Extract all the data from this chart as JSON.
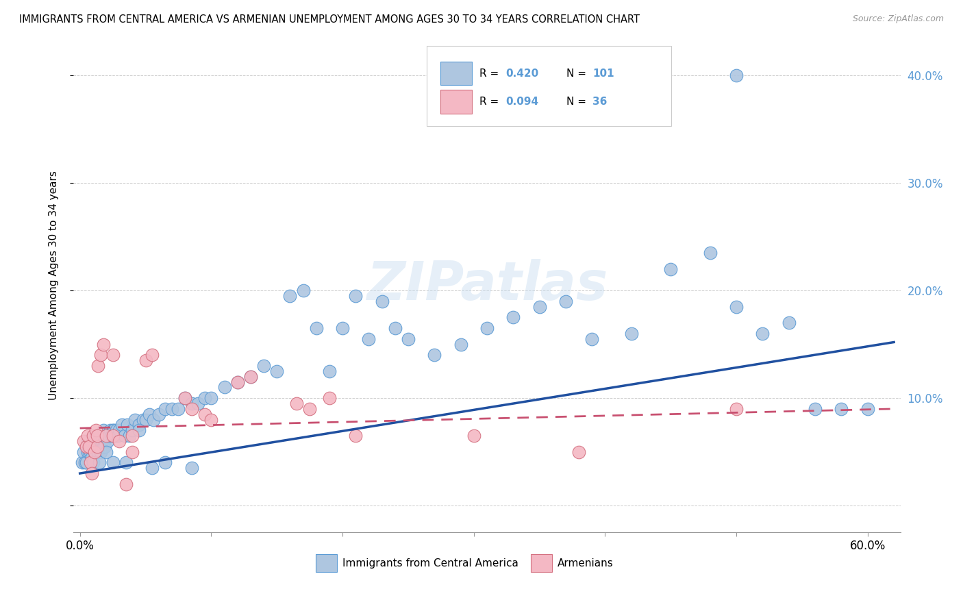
{
  "title": "IMMIGRANTS FROM CENTRAL AMERICA VS ARMENIAN UNEMPLOYMENT AMONG AGES 30 TO 34 YEARS CORRELATION CHART",
  "source": "Source: ZipAtlas.com",
  "ylabel": "Unemployment Among Ages 30 to 34 years",
  "xlim": [
    -0.005,
    0.625
  ],
  "ylim": [
    -0.025,
    0.435
  ],
  "blue_R": 0.42,
  "blue_N": 101,
  "pink_R": 0.094,
  "pink_N": 36,
  "blue_color": "#aec6e0",
  "blue_edge": "#5b9bd5",
  "pink_color": "#f4b8c4",
  "pink_edge": "#d47080",
  "trend_blue": "#2050a0",
  "trend_pink": "#c85070",
  "legend_label_blue": "Immigrants from Central America",
  "legend_label_pink": "Armenians",
  "watermark": "ZIPatlas",
  "blue_trend_x0": 0.0,
  "blue_trend_y0": 0.03,
  "blue_trend_x1": 0.62,
  "blue_trend_y1": 0.152,
  "pink_trend_x0": 0.0,
  "pink_trend_y0": 0.072,
  "pink_trend_x1": 0.62,
  "pink_trend_y1": 0.09,
  "blue_x": [
    0.002,
    0.003,
    0.004,
    0.005,
    0.006,
    0.006,
    0.007,
    0.007,
    0.008,
    0.008,
    0.009,
    0.009,
    0.01,
    0.01,
    0.011,
    0.011,
    0.012,
    0.012,
    0.013,
    0.013,
    0.014,
    0.015,
    0.015,
    0.016,
    0.016,
    0.017,
    0.018,
    0.018,
    0.019,
    0.02,
    0.021,
    0.022,
    0.023,
    0.024,
    0.025,
    0.026,
    0.027,
    0.028,
    0.029,
    0.03,
    0.032,
    0.034,
    0.036,
    0.038,
    0.04,
    0.042,
    0.045,
    0.048,
    0.05,
    0.053,
    0.056,
    0.06,
    0.065,
    0.07,
    0.075,
    0.08,
    0.085,
    0.09,
    0.095,
    0.1,
    0.11,
    0.12,
    0.13,
    0.14,
    0.15,
    0.16,
    0.17,
    0.18,
    0.19,
    0.2,
    0.21,
    0.22,
    0.23,
    0.24,
    0.25,
    0.27,
    0.29,
    0.31,
    0.33,
    0.35,
    0.37,
    0.39,
    0.42,
    0.45,
    0.48,
    0.5,
    0.52,
    0.54,
    0.56,
    0.58,
    0.6,
    0.01,
    0.015,
    0.02,
    0.025,
    0.035,
    0.045,
    0.055,
    0.065,
    0.085,
    0.5
  ],
  "blue_y": [
    0.04,
    0.05,
    0.04,
    0.04,
    0.05,
    0.06,
    0.05,
    0.06,
    0.05,
    0.055,
    0.045,
    0.06,
    0.055,
    0.065,
    0.05,
    0.055,
    0.055,
    0.065,
    0.055,
    0.065,
    0.05,
    0.055,
    0.065,
    0.05,
    0.06,
    0.06,
    0.055,
    0.07,
    0.055,
    0.065,
    0.06,
    0.065,
    0.07,
    0.065,
    0.07,
    0.07,
    0.065,
    0.07,
    0.065,
    0.07,
    0.075,
    0.065,
    0.075,
    0.065,
    0.07,
    0.08,
    0.075,
    0.08,
    0.08,
    0.085,
    0.08,
    0.085,
    0.09,
    0.09,
    0.09,
    0.1,
    0.095,
    0.095,
    0.1,
    0.1,
    0.11,
    0.115,
    0.12,
    0.13,
    0.125,
    0.195,
    0.2,
    0.165,
    0.125,
    0.165,
    0.195,
    0.155,
    0.19,
    0.165,
    0.155,
    0.14,
    0.15,
    0.165,
    0.175,
    0.185,
    0.19,
    0.155,
    0.16,
    0.22,
    0.235,
    0.185,
    0.16,
    0.17,
    0.09,
    0.09,
    0.09,
    0.04,
    0.04,
    0.05,
    0.04,
    0.04,
    0.07,
    0.035,
    0.04,
    0.035,
    0.4
  ],
  "pink_x": [
    0.003,
    0.005,
    0.006,
    0.007,
    0.008,
    0.009,
    0.01,
    0.011,
    0.012,
    0.013,
    0.013,
    0.014,
    0.016,
    0.018,
    0.02,
    0.025,
    0.025,
    0.03,
    0.035,
    0.04,
    0.04,
    0.05,
    0.055,
    0.08,
    0.085,
    0.095,
    0.1,
    0.12,
    0.13,
    0.165,
    0.175,
    0.19,
    0.21,
    0.3,
    0.38,
    0.5
  ],
  "pink_y": [
    0.06,
    0.055,
    0.065,
    0.055,
    0.04,
    0.03,
    0.065,
    0.05,
    0.07,
    0.055,
    0.065,
    0.13,
    0.14,
    0.15,
    0.065,
    0.065,
    0.14,
    0.06,
    0.02,
    0.065,
    0.05,
    0.135,
    0.14,
    0.1,
    0.09,
    0.085,
    0.08,
    0.115,
    0.12,
    0.095,
    0.09,
    0.1,
    0.065,
    0.065,
    0.05,
    0.09
  ]
}
